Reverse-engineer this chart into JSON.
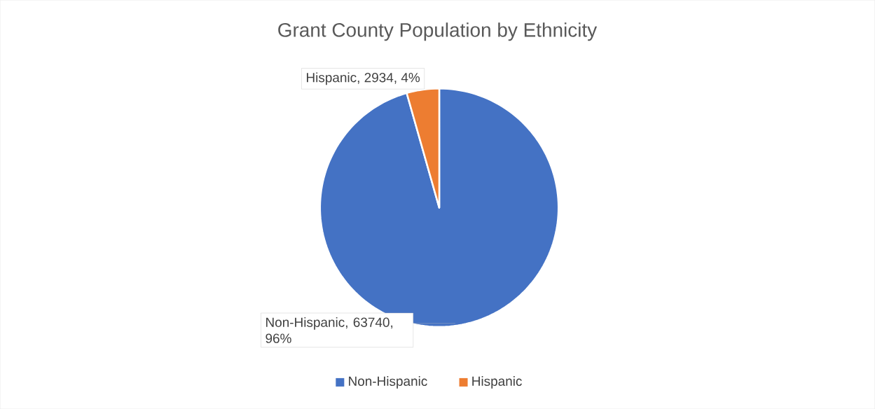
{
  "chart_data": {
    "type": "pie",
    "title": "Grant County Population by Ethnicity",
    "categories": [
      "Non-Hispanic",
      "Hispanic"
    ],
    "values": [
      63740,
      2934
    ],
    "colors": [
      "#4472c4",
      "#ed7d31"
    ],
    "value_labels": [
      "Non-Hispanic, 63740, 96%",
      "Hispanic, 2934, 4%"
    ],
    "legend": "bottom"
  }
}
